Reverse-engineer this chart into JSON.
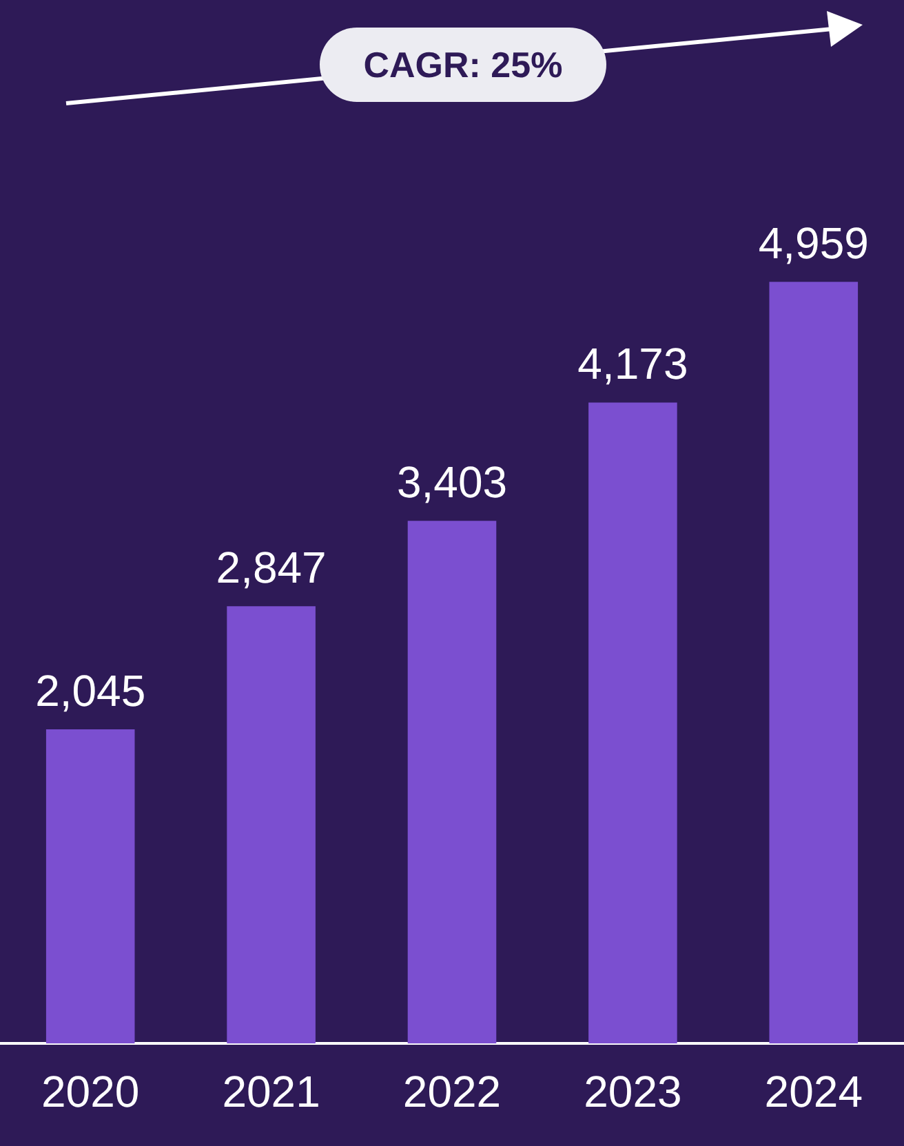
{
  "chart_data": {
    "type": "bar",
    "categories": [
      "2020",
      "2021",
      "2022",
      "2023",
      "2024"
    ],
    "values": [
      2045,
      2847,
      3403,
      4173,
      4959
    ],
    "color": "#7b4fd0",
    "value_labels": [
      "2,045",
      "2,847",
      "3,403",
      "4,173",
      "4,959"
    ],
    "annotations": [
      "CAGR: 25%"
    ],
    "grid": false,
    "legend": false
  }
}
